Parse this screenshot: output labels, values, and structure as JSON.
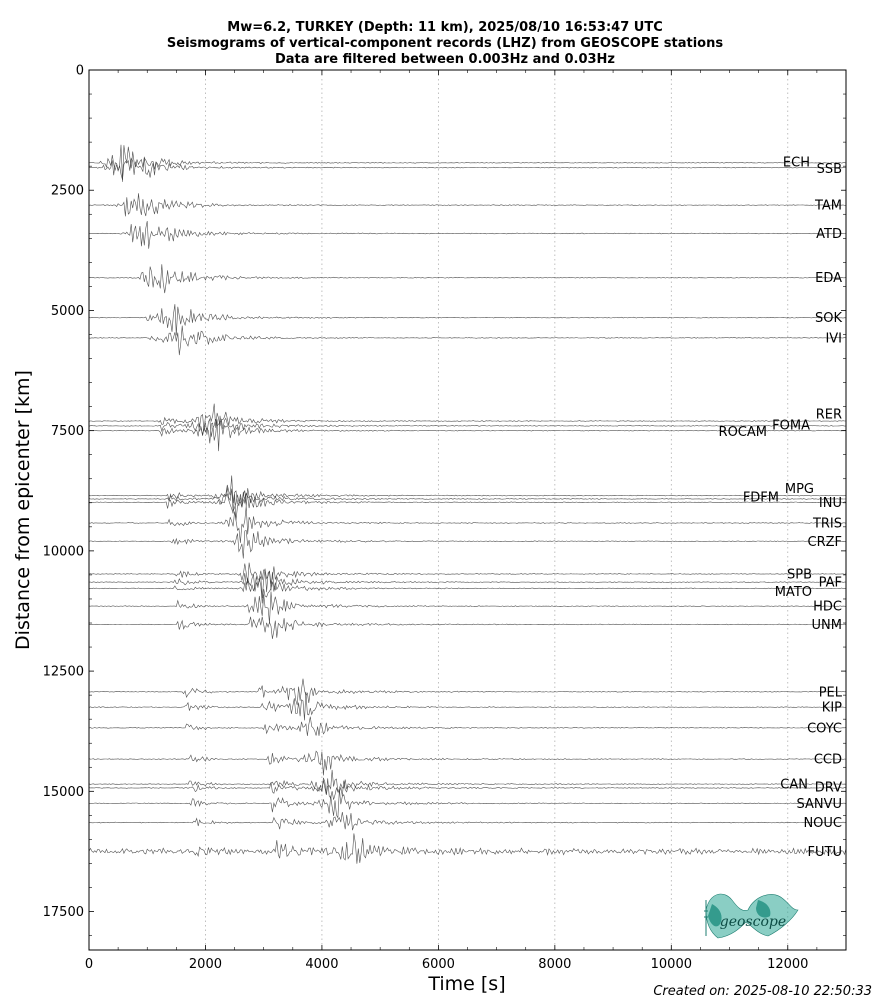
{
  "chart_data": {
    "type": "line",
    "title": [
      "Mw=6.2, TURKEY (Depth: 11 km), 2025/08/10 16:53:47 UTC",
      "Seismograms of vertical-component records (LHZ) from GEOSCOPE stations",
      "Data are filtered between 0.003Hz and 0.03Hz"
    ],
    "xlabel": "Time [s]",
    "ylabel": "Distance from epicenter [km]",
    "xlim": [
      0,
      13000
    ],
    "ylim": [
      18300,
      0
    ],
    "y_inverted": true,
    "xticks": [
      "0",
      "2000",
      "4000",
      "6000",
      "8000",
      "10000",
      "12000"
    ],
    "yticks": [
      "0",
      "2500",
      "5000",
      "7500",
      "10000",
      "12500",
      "15000",
      "17500"
    ],
    "grid": "vertical-dotted",
    "trace_color": "#333333",
    "series": [
      {
        "name": "ECH",
        "distance_km": 1930,
        "p_arrival_s": 500
      },
      {
        "name": "SSB",
        "distance_km": 2030,
        "p_arrival_s": 520
      },
      {
        "name": "TAM",
        "distance_km": 2810,
        "p_arrival_s": 620
      },
      {
        "name": "ATD",
        "distance_km": 3400,
        "p_arrival_s": 720
      },
      {
        "name": "EDA",
        "distance_km": 4320,
        "p_arrival_s": 850
      },
      {
        "name": "SOK",
        "distance_km": 5150,
        "p_arrival_s": 950
      },
      {
        "name": "IVI",
        "distance_km": 5570,
        "p_arrival_s": 1000
      },
      {
        "name": "RER",
        "distance_km": 7300,
        "p_arrival_s": 1180
      },
      {
        "name": "FOMA",
        "distance_km": 7400,
        "p_arrival_s": 1200
      },
      {
        "name": "ROCAM",
        "distance_km": 7500,
        "p_arrival_s": 1210
      },
      {
        "name": "MPG",
        "distance_km": 8850,
        "p_arrival_s": 1320
      },
      {
        "name": "FDFM",
        "distance_km": 8920,
        "p_arrival_s": 1330
      },
      {
        "name": "INU",
        "distance_km": 8990,
        "p_arrival_s": 1340
      },
      {
        "name": "TRIS",
        "distance_km": 9420,
        "p_arrival_s": 1370
      },
      {
        "name": "CRZF",
        "distance_km": 9800,
        "p_arrival_s": 1400
      },
      {
        "name": "SPB",
        "distance_km": 10480,
        "p_arrival_s": 1450
      },
      {
        "name": "PAF",
        "distance_km": 10650,
        "p_arrival_s": 1460
      },
      {
        "name": "MATO",
        "distance_km": 10780,
        "p_arrival_s": 1470
      },
      {
        "name": "HDC",
        "distance_km": 11150,
        "p_arrival_s": 1500
      },
      {
        "name": "UNM",
        "distance_km": 11530,
        "p_arrival_s": 1520
      },
      {
        "name": "PEL",
        "distance_km": 12930,
        "p_arrival_s": 1620
      },
      {
        "name": "KIP",
        "distance_km": 13250,
        "p_arrival_s": 1640
      },
      {
        "name": "COYC",
        "distance_km": 13680,
        "p_arrival_s": 1660
      },
      {
        "name": "CCD",
        "distance_km": 14330,
        "p_arrival_s": 1700
      },
      {
        "name": "CAN",
        "distance_km": 14850,
        "p_arrival_s": 1720
      },
      {
        "name": "DRV",
        "distance_km": 14930,
        "p_arrival_s": 1725
      },
      {
        "name": "SANVU",
        "distance_km": 15250,
        "p_arrival_s": 1740
      },
      {
        "name": "NOUC",
        "distance_km": 15650,
        "p_arrival_s": 1760
      },
      {
        "name": "FUTU",
        "distance_km": 16250,
        "p_arrival_s": 1790
      }
    ]
  },
  "footer": {
    "created": "Created on: 2025-08-10 22:50:33"
  },
  "logo": {
    "text": "geoscope",
    "icon": "geoscope-globe-logo",
    "color": "#2aa594"
  }
}
